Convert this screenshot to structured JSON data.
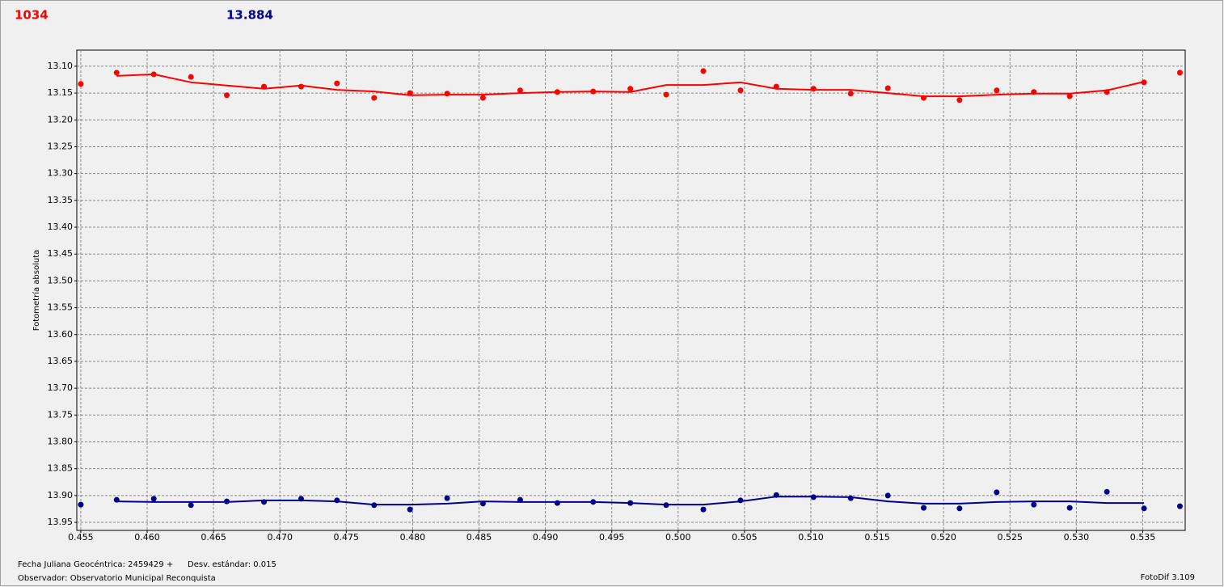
{
  "chart_data": {
    "type": "scatter",
    "annotations": [
      {
        "text": "1034",
        "color": "#ff0000"
      },
      {
        "text": "13.884",
        "color": "#00008b"
      }
    ],
    "ylabel": "Fotometría absoluta",
    "footer": {
      "date": "Fecha Juliana Geocéntrica: 2459429 +",
      "stdev": "Desv. estándar: 0.015",
      "observer": "Observador: Observatorio Municipal Reconquista",
      "app": "FotoDif 3.109"
    },
    "xlim": [
      0.4547,
      0.5382
    ],
    "ylim": [
      13.965,
      13.07
    ],
    "grid": true,
    "xticks": [
      0.455,
      {
        "value": 0.46,
        "label": "0.460"
      },
      0.465,
      {
        "value": 0.47,
        "label": "0.470"
      },
      0.475,
      {
        "value": 0.48,
        "label": "0.480"
      },
      0.485,
      {
        "value": 0.49,
        "label": "0.490"
      },
      0.495,
      {
        "value": 0.5,
        "label": "0.500"
      },
      0.505,
      {
        "value": 0.51,
        "label": "0.510"
      },
      0.515,
      {
        "value": 0.52,
        "label": "0.520"
      },
      0.525,
      {
        "value": 0.53,
        "label": "0.530"
      },
      0.535
    ],
    "yticks": [
      {
        "value": 13.1,
        "label": "13.10"
      },
      13.15,
      {
        "value": 13.2,
        "label": "13.20"
      },
      13.25,
      {
        "value": 13.3,
        "label": "13.30"
      },
      13.35,
      {
        "value": 13.4,
        "label": "13.40"
      },
      13.45,
      {
        "value": 13.5,
        "label": "13.50"
      },
      13.55,
      {
        "value": 13.6,
        "label": "13.60"
      },
      13.65,
      {
        "value": 13.7,
        "label": "13.70"
      },
      13.75,
      {
        "value": 13.8,
        "label": "13.80"
      },
      13.85,
      {
        "value": 13.9,
        "label": "13.90"
      },
      13.95
    ],
    "x": [
      0.455,
      0.4577,
      0.4605,
      0.4633,
      0.466,
      0.4688,
      0.4716,
      0.4743,
      0.4771,
      0.4798,
      0.4826,
      0.4853,
      0.4881,
      0.4909,
      0.4936,
      0.4964,
      0.4991,
      0.5019,
      0.5047,
      0.5074,
      0.5102,
      0.513,
      0.5158,
      0.5185,
      0.5212,
      0.524,
      0.5268,
      0.5295,
      0.5323,
      0.5351,
      0.5378
    ],
    "series": [
      {
        "color": "#ff0000",
        "values": [
          13.133,
          13.112,
          13.115,
          13.12,
          13.154,
          13.138,
          13.138,
          13.132,
          13.159,
          13.15,
          13.151,
          13.159,
          13.145,
          13.148,
          13.147,
          13.142,
          13.153,
          13.109,
          13.145,
          13.138,
          13.142,
          13.151,
          13.141,
          13.159,
          13.163,
          13.145,
          13.148,
          13.156,
          13.148,
          13.13,
          13.112
        ],
        "fit": [
          null,
          13.118,
          13.115,
          13.13,
          13.136,
          13.142,
          13.136,
          13.144,
          13.147,
          13.154,
          13.153,
          13.153,
          13.15,
          13.148,
          13.147,
          13.148,
          13.135,
          13.135,
          13.13,
          13.142,
          13.144,
          13.144,
          13.15,
          13.156,
          13.156,
          13.153,
          13.151,
          13.151,
          13.145,
          13.129,
          null
        ]
      },
      {
        "color": "#00008b",
        "values": [
          13.917,
          13.908,
          13.906,
          13.918,
          13.911,
          13.912,
          13.906,
          13.909,
          13.918,
          13.926,
          13.905,
          13.915,
          13.908,
          13.914,
          13.912,
          13.914,
          13.918,
          13.926,
          13.909,
          13.899,
          13.903,
          13.905,
          13.9,
          13.923,
          13.924,
          13.894,
          13.917,
          13.923,
          13.893,
          13.924,
          13.92
        ],
        "fit": [
          null,
          13.911,
          13.912,
          13.912,
          13.912,
          13.909,
          13.909,
          13.911,
          13.917,
          13.917,
          13.915,
          13.911,
          13.912,
          13.912,
          13.912,
          13.914,
          13.917,
          13.917,
          13.911,
          13.902,
          13.902,
          13.903,
          13.911,
          13.915,
          13.915,
          13.912,
          13.911,
          13.911,
          13.914,
          13.914,
          null
        ]
      }
    ]
  }
}
